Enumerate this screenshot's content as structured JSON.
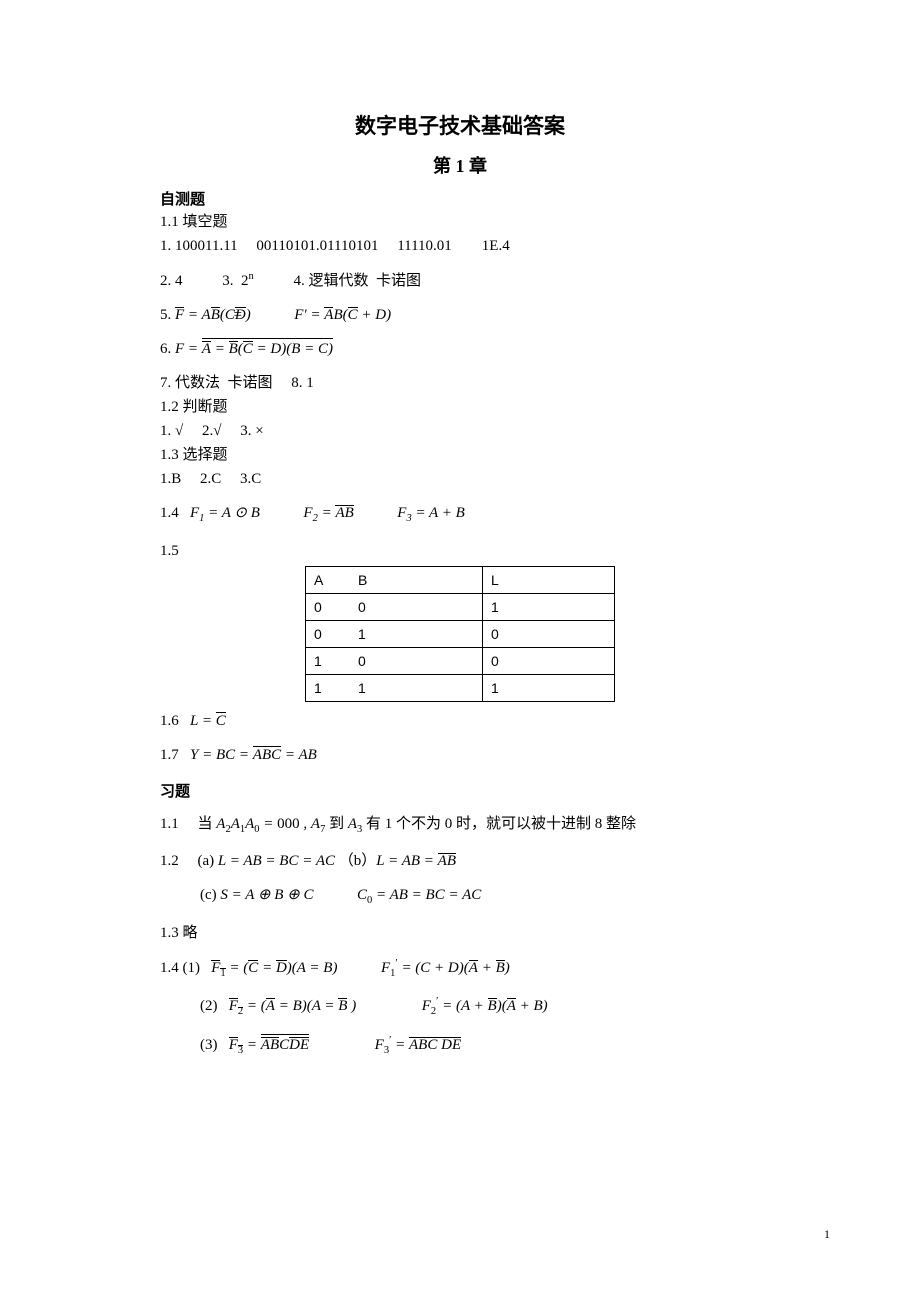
{
  "title": "数字电子技术基础答案",
  "chapter": "第 1 章",
  "self_test_head": "自测题",
  "s1_1_head": "1.1 填空题",
  "s1_1_q1": "1. 100011.11  00110101.01110101  11110.01  1E.4",
  "s1_1_q2_a": "2. 4",
  "s1_1_q2_b": "3.  2",
  "s1_1_q2_b_sup": "n",
  "s1_1_q2_c": "4. 逻辑代数  卡诺图",
  "q5_lead": "5. ",
  "q5_F": "F",
  "eq_sym": " = ",
  "q5_r1a": "A",
  "q5_r1b": "B",
  "q5_r1c": "(C",
  "q5_r1d": "D",
  "q5_r1e": ")",
  "q5_r2_pre": "F′ = ",
  "q5_r2a": "A",
  "q5_r2b": "B(",
  "q5_r2c": "C",
  "q5_r2d": " + D)",
  "q6_lead": "6. ",
  "q6_F": "F",
  "q6_a1": "A",
  "q6_a2": "B",
  "q6_a3": "(",
  "q6_a4": "C",
  "q6_a5": "D)(B",
  "q6_a6": "C)",
  "s1_1_q7": "7. 代数法  卡诺图  8. 1",
  "s1_2_head": "1.2 判断题",
  "s1_2_q": "1. √  2.√  3. ×",
  "s1_3_head": "1.3 选择题",
  "s1_3_q": "1.B  2.C  3.C",
  "s1_4_lead": "1.4  ",
  "s1_4_f1a": "F",
  "s1_4_f1b": "1",
  "s1_4_f1c": " = A ⊙ B",
  "s1_4_f2a": "F",
  "s1_4_f2b": "2",
  "s1_4_f2c": " = ",
  "s1_4_f2d": "AB",
  "s1_4_f3a": "F",
  "s1_4_f3b": "3",
  "s1_4_f3c": " = A + B",
  "s1_5": "1.5",
  "table": {
    "h1": "A",
    "h1b": "B",
    "h2": "L",
    "r": [
      [
        "0",
        "0",
        "1"
      ],
      [
        "0",
        "1",
        "0"
      ],
      [
        "1",
        "0",
        "0"
      ],
      [
        "1",
        "1",
        "1"
      ]
    ]
  },
  "s1_6_lead": "1.6  ",
  "s1_6_a": "L = ",
  "s1_6_b": "C",
  "s1_7_lead": "1.7  ",
  "s1_7_a": "Y",
  "s1_7_b": "BC",
  "s1_7_c": "A",
  "s1_7_d": "B",
  "s1_7_e": "C",
  "s1_7_f": "AB",
  "ex_head": "习题",
  "e1_1_lead": "1.1  当 ",
  "e1_1_a": "A",
  "e1_1_s2": "2",
  "e1_1_s1": "1",
  "e1_1_s0": "0",
  "e1_1_mid": "000",
  "e1_1_comma": " , ",
  "e1_1_s7": "7",
  "e1_1_to": " 到 ",
  "e1_1_s3": "3",
  "e1_1_tail": " 有 1 个不为 0 时，就可以被十进制 8 整除",
  "e1_2_lead": "1.2 ",
  "e1_2a_p": "(a) ",
  "e1_2_L": "L",
  "e1_2a_1": "AB",
  "e1_2a_2": "BC",
  "e1_2a_3": "AC",
  "e1_2b_p": "（b）",
  "e1_2b_1": "AB",
  "e1_2b_2": "A",
  "e1_2b_3": "B",
  "e1_2c_p": "(c) ",
  "e1_2c_s": "S = A ⊕ B ⊕ C",
  "e1_2c_c0": "C",
  "e1_2c_c0s": "0",
  "e1_2c_1": "AB",
  "e1_2c_2": "BC",
  "e1_2c_3": "AC",
  "e1_3": "1.3 略",
  "e1_4_lead": "1.4 (1)  ",
  "e1_4_1_F": "F",
  "e1_4_1_s": "1",
  "e1_4_1_a": "(",
  "e1_4_1_b": "C",
  "e1_4_1_c": "D",
  "e1_4_1_d": ")(A",
  "e1_4_1_e": "B)",
  "e1_4_1_r_pre": "F",
  "e1_4_1_r_prime": "′",
  "e1_4_1_r_eq": " = (C + D)(",
  "e1_4_1_r_a": "A",
  "e1_4_1_r_p": " + ",
  "e1_4_1_r_b": "B",
  "e1_4_1_r_end": ")",
  "e1_4_2_lead": "(2)  ",
  "e1_4_2_F": "F",
  "e1_4_2_s": "2",
  "e1_4_2_a": "(",
  "e1_4_2_b": "A",
  "e1_4_2_c": "B)(A",
  "e1_4_2_d": "B",
  "e1_4_2_e": " )",
  "e1_4_2_r_eq": " = (A + ",
  "e1_4_2_r_b": "B",
  "e1_4_2_r_m": ")(",
  "e1_4_2_r_a": "A",
  "e1_4_2_r_end": " + B)",
  "e1_4_3_lead": "(3)  ",
  "e1_4_3_F": "F",
  "e1_4_3_s": "3",
  "e1_4_3_a": "A",
  "e1_4_3_b": "B",
  "e1_4_3_c": "C",
  "e1_4_3_d": "D",
  "e1_4_3_e": "E",
  "e1_4_3_r_eq": " = ",
  "e1_4_3_r_a": "AB",
  "e1_4_3_r_b": "C",
  "e1_4_3_r_c": " ",
  "e1_4_3_r_d": "DE",
  "pagenum": "1"
}
